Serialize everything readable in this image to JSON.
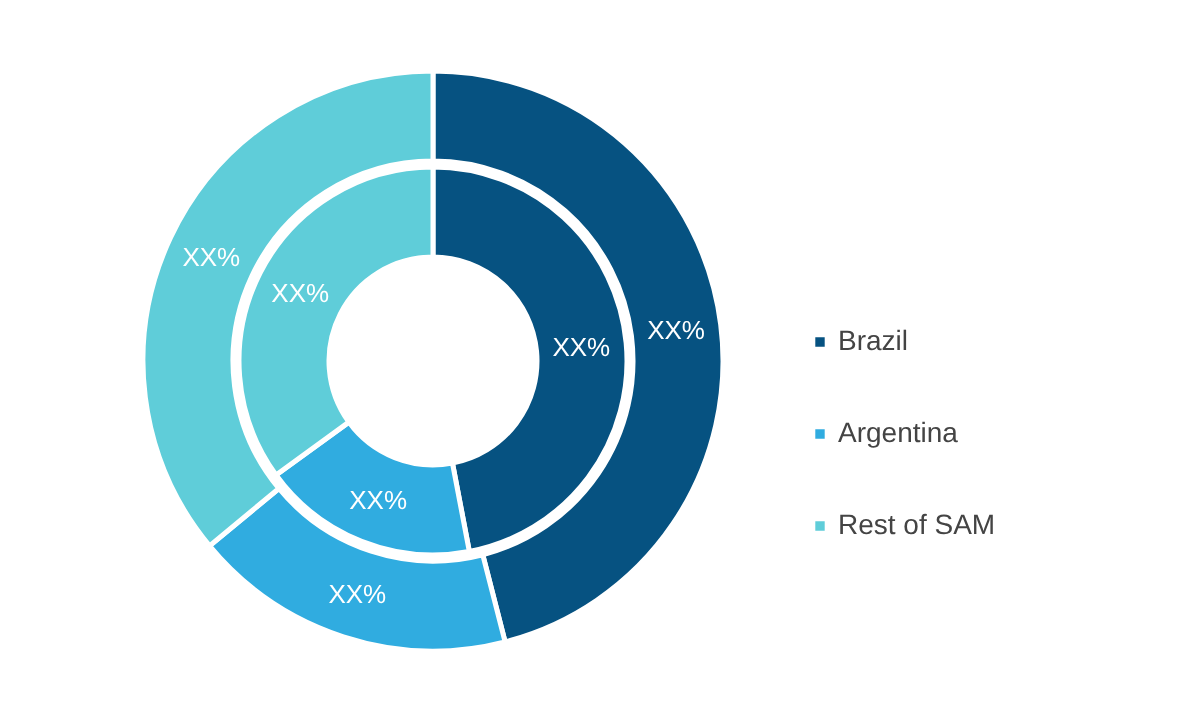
{
  "chart_data": {
    "type": "donut",
    "categories": [
      "Brazil",
      "Argentina",
      "Rest of SAM"
    ],
    "colors": [
      "#065281",
      "#30ace0",
      "#5fcdd9"
    ],
    "series": [
      {
        "values": [
          46,
          18,
          36
        ],
        "value_labels": [
          "XX%",
          "XX%",
          "XX%"
        ]
      },
      {
        "values": [
          47,
          18,
          35
        ],
        "value_labels": [
          "XX%",
          "XX%",
          "XX%"
        ]
      }
    ],
    "legend": "right"
  }
}
